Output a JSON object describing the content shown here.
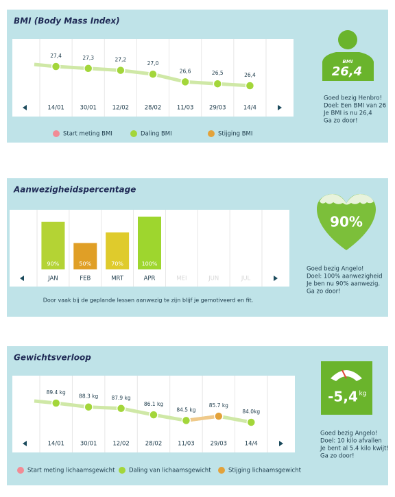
{
  "chart_data": [
    {
      "type": "line",
      "title": "BMI (Body Mass Index)",
      "categories": [
        "14/01",
        "30/01",
        "12/02",
        "28/02",
        "11/03",
        "29/03",
        "14/4"
      ],
      "values": [
        27.4,
        27.3,
        27.2,
        27.0,
        26.6,
        26.5,
        26.4
      ],
      "value_labels": [
        "27,4",
        "27,3",
        "27,2",
        "27,0",
        "26,6",
        "26,5",
        "26,4"
      ],
      "color": "#a3d63a",
      "line_color": "#cfe8a6",
      "rise_color": "#e3a23a",
      "legend": [
        {
          "name": "Start meting BMI",
          "color": "#f28b95"
        },
        {
          "name": "Daling BMI",
          "color": "#a3d63a"
        },
        {
          "name": "Stijging BMI",
          "color": "#e3a23a"
        }
      ],
      "badge": {
        "label": "BMI",
        "value": "26,4"
      },
      "message": [
        "Goed bezig Henbro!",
        "Doel: Een BMI van 26",
        "Je BMI is nu 26,4",
        "Ga zo door!"
      ]
    },
    {
      "type": "bar",
      "title": "Aanwezigheidspercentage",
      "categories": [
        "JAN",
        "FEB",
        "MRT",
        "APR",
        "MEI",
        "JUN",
        "JUL"
      ],
      "values": [
        90,
        50,
        70,
        100,
        null,
        null,
        null
      ],
      "value_labels": [
        "90%",
        "50%",
        "70%",
        "100%",
        null,
        null,
        null
      ],
      "colors": [
        "#b4d334",
        "#e09f26",
        "#dfcb2c",
        "#9ed62e",
        null,
        null,
        null
      ],
      "caption": "Door vaak bij de geplande lessen aanwezig te zijn blijf je gemotiveerd en fit.",
      "badge": {
        "value": "90%"
      },
      "message": [
        "Goed bezig Angelo!",
        "Doel: 100% aanwezigheid",
        "Je ben nu 90% aanwezig.",
        "Ga zo door!"
      ]
    },
    {
      "type": "line",
      "title": "Gewichtsverloop",
      "categories": [
        "14/01",
        "30/01",
        "12/02",
        "28/02",
        "11/03",
        "29/03",
        "14/4"
      ],
      "values": [
        89.4,
        88.3,
        87.9,
        86.1,
        84.5,
        85.7,
        84.0
      ],
      "value_labels": [
        "89.4 kg",
        "88.3 kg",
        "87.9 kg",
        "86.1 kg",
        "84.5 kg",
        "85.7 kg",
        "84.0kg"
      ],
      "color": "#a3d63a",
      "line_color": "#cfe8a6",
      "rise_color": "#e3a23a",
      "legend": [
        {
          "name": "Start meting lichaamsgewicht",
          "color": "#f28b95"
        },
        {
          "name": "Daling van lichaamsgewicht",
          "color": "#a3d63a"
        },
        {
          "name": "Stijging lichaamsgewicht",
          "color": "#e3a23a"
        }
      ],
      "badge": {
        "value": "-5,4",
        "unit": "kg"
      },
      "message": [
        "Goed bezig Angelo!",
        "Doel: 10 kilo afvallen",
        "Je bent al 5.4 kilo kwijt!",
        "Ga zo door!"
      ]
    }
  ]
}
